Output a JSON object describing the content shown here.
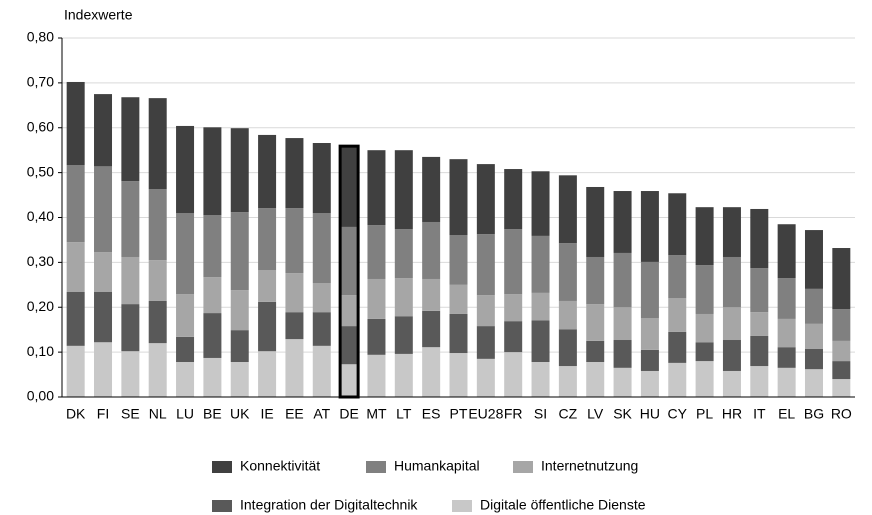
{
  "chart_data": {
    "type": "stacked_bar",
    "y_axis_label": "Indexwerte",
    "categories": [
      "DK",
      "FI",
      "SE",
      "NL",
      "LU",
      "BE",
      "UK",
      "IE",
      "EE",
      "AT",
      "DE",
      "MT",
      "LT",
      "ES",
      "PT",
      "EU28",
      "FR",
      "SI",
      "CZ",
      "LV",
      "SK",
      "HU",
      "CY",
      "PL",
      "HR",
      "IT",
      "EL",
      "BG",
      "RO"
    ],
    "series": [
      {
        "name": "Konnektivität",
        "color": "#404040",
        "values": [
          0.185,
          0.161,
          0.187,
          0.203,
          0.194,
          0.196,
          0.187,
          0.163,
          0.156,
          0.156,
          0.18,
          0.167,
          0.176,
          0.145,
          0.169,
          0.156,
          0.134,
          0.144,
          0.151,
          0.156,
          0.138,
          0.158,
          0.138,
          0.129,
          0.111,
          0.132,
          0.12,
          0.131,
          0.136
        ]
      },
      {
        "name": "Humankapital",
        "color": "#808080",
        "values": [
          0.172,
          0.191,
          0.169,
          0.158,
          0.181,
          0.138,
          0.174,
          0.138,
          0.145,
          0.156,
          0.152,
          0.12,
          0.109,
          0.127,
          0.111,
          0.136,
          0.145,
          0.127,
          0.129,
          0.105,
          0.121,
          0.125,
          0.096,
          0.109,
          0.112,
          0.098,
          0.091,
          0.078,
          0.071
        ]
      },
      {
        "name": "Internetnutzung",
        "color": "#a6a6a6",
        "values": [
          0.111,
          0.089,
          0.105,
          0.091,
          0.095,
          0.08,
          0.089,
          0.071,
          0.087,
          0.065,
          0.069,
          0.089,
          0.085,
          0.071,
          0.065,
          0.069,
          0.06,
          0.061,
          0.063,
          0.082,
          0.073,
          0.071,
          0.075,
          0.063,
          0.073,
          0.053,
          0.063,
          0.056,
          0.045
        ]
      },
      {
        "name": "Integration der Digitaltechnik",
        "color": "#595959",
        "values": [
          0.12,
          0.112,
          0.105,
          0.094,
          0.056,
          0.1,
          0.071,
          0.11,
          0.06,
          0.075,
          0.085,
          0.08,
          0.084,
          0.081,
          0.087,
          0.073,
          0.069,
          0.093,
          0.082,
          0.047,
          0.062,
          0.047,
          0.069,
          0.042,
          0.069,
          0.067,
          0.046,
          0.045,
          0.04
        ]
      },
      {
        "name": "Digitale öffentliche Dienste",
        "color": "#c8c8c8",
        "values": [
          0.114,
          0.122,
          0.102,
          0.12,
          0.078,
          0.087,
          0.078,
          0.102,
          0.129,
          0.114,
          0.073,
          0.094,
          0.096,
          0.111,
          0.098,
          0.085,
          0.1,
          0.078,
          0.069,
          0.078,
          0.065,
          0.058,
          0.076,
          0.08,
          0.058,
          0.069,
          0.065,
          0.062,
          0.04
        ]
      }
    ],
    "highlight": "DE",
    "ylim": [
      0,
      0.8
    ],
    "yticks": [
      {
        "value": 0,
        "label": "0,00"
      },
      {
        "value": 0.1,
        "label": "0,10"
      },
      {
        "value": 0.2,
        "label": "0,20"
      },
      {
        "value": 0.3,
        "label": "0,30"
      },
      {
        "value": 0.4,
        "label": "0,40"
      },
      {
        "value": 0.5,
        "label": "0,50"
      },
      {
        "value": 0.6,
        "label": "0,60"
      },
      {
        "value": 0.7,
        "label": "0,70"
      },
      {
        "value": 0.8,
        "label": "0,80"
      }
    ],
    "grid": true
  }
}
